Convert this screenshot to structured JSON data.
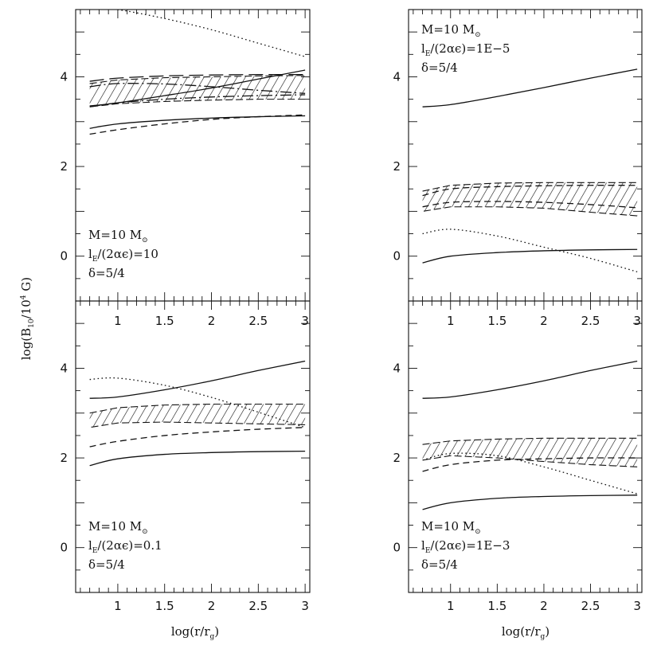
{
  "figure": {
    "ylabel": "log(B",
    "ylabel_sub": "10",
    "ylabel_rest": "/10",
    "ylabel_sup": "4",
    "ylabel_tail": " G)",
    "xlabel": "log(r/r",
    "xlabel_sub": "g",
    "xlabel_tail": ")"
  },
  "chart_data": [
    {
      "type": "line",
      "panel": "top-left",
      "xlim": [
        0.55,
        3.05
      ],
      "ylim": [
        -1.0,
        5.5
      ],
      "xticks": [
        "1",
        "1.5",
        "2",
        "2.5",
        "3"
      ],
      "yticks": [
        "0",
        "2",
        "4"
      ],
      "annotation": {
        "m_label": "M=10 M",
        "m_sub": "⊙",
        "l_label": "l",
        "l_sub": "E",
        "l_rest": "/(2αϵ)=10",
        "delta": "δ=5/4"
      },
      "series": [
        {
          "name": "dotted",
          "style": "dotted",
          "x": [
            0.7,
            1.0,
            1.5,
            2.0,
            2.5,
            3.0
          ],
          "y": [
            5.55,
            5.5,
            5.3,
            5.05,
            4.75,
            4.45
          ]
        },
        {
          "name": "long-dash",
          "style": "longdash",
          "x": [
            0.7,
            1.0,
            1.5,
            2.0,
            2.5,
            3.0
          ],
          "y": [
            3.9,
            3.97,
            4.02,
            4.04,
            4.05,
            4.05
          ]
        },
        {
          "name": "dash-dot",
          "style": "dashdot",
          "x": [
            0.7,
            1.0,
            1.5,
            2.0,
            2.5,
            3.0
          ],
          "y": [
            3.78,
            3.85,
            3.84,
            3.78,
            3.7,
            3.63
          ]
        },
        {
          "name": "dash-dot-2",
          "style": "dashdot",
          "x": [
            0.7,
            1.0,
            1.5,
            2.0,
            2.5,
            3.0
          ],
          "y": [
            3.33,
            3.42,
            3.5,
            3.55,
            3.58,
            3.6
          ]
        },
        {
          "name": "solid-upper",
          "style": "solid",
          "x": [
            0.7,
            1.0,
            1.5,
            2.0,
            2.5,
            3.0
          ],
          "y": [
            3.35,
            3.42,
            3.58,
            3.75,
            3.95,
            4.15
          ]
        },
        {
          "name": "solid-lower",
          "style": "solid",
          "x": [
            0.7,
            1.0,
            1.5,
            2.0,
            2.5,
            3.0
          ],
          "y": [
            2.85,
            2.95,
            3.03,
            3.08,
            3.11,
            3.13
          ]
        },
        {
          "name": "dashed",
          "style": "dashed",
          "x": [
            0.7,
            1.0,
            1.5,
            2.0,
            2.5,
            3.0
          ],
          "y": [
            2.72,
            2.82,
            2.95,
            3.05,
            3.11,
            3.15
          ]
        }
      ],
      "band": {
        "x": [
          0.7,
          1.0,
          1.5,
          2.0,
          2.5,
          3.0
        ],
        "upper": [
          3.85,
          3.93,
          3.98,
          4.0,
          4.02,
          4.03
        ],
        "lower": [
          3.33,
          3.4,
          3.45,
          3.48,
          3.5,
          3.5
        ]
      }
    },
    {
      "type": "line",
      "panel": "top-right",
      "xlim": [
        0.55,
        3.05
      ],
      "ylim": [
        -1.0,
        5.5
      ],
      "xticks": [
        "1",
        "1.5",
        "2",
        "2.5",
        "3"
      ],
      "yticks": [
        "0",
        "2",
        "4"
      ],
      "annotation": {
        "m_label": "M=10 M",
        "m_sub": "⊙",
        "l_label": "l",
        "l_sub": "E",
        "l_rest": "/(2αϵ)=1E−5",
        "delta": "δ=5/4"
      },
      "series": [
        {
          "name": "solid-upper",
          "style": "solid",
          "x": [
            0.7,
            1.0,
            1.5,
            2.0,
            2.5,
            3.0
          ],
          "y": [
            3.33,
            3.38,
            3.56,
            3.76,
            3.97,
            4.17
          ]
        },
        {
          "name": "dashed-1",
          "style": "dashed",
          "x": [
            0.7,
            1.0,
            1.5,
            2.0,
            2.5,
            3.0
          ],
          "y": [
            1.35,
            1.5,
            1.55,
            1.57,
            1.58,
            1.58
          ]
        },
        {
          "name": "dashed-2",
          "style": "dashed",
          "x": [
            0.7,
            1.0,
            1.5,
            2.0,
            2.5,
            3.0
          ],
          "y": [
            1.1,
            1.2,
            1.22,
            1.2,
            1.15,
            1.08
          ]
        },
        {
          "name": "dotted",
          "style": "dotted",
          "x": [
            0.7,
            1.0,
            1.5,
            2.0,
            2.5,
            3.0
          ],
          "y": [
            0.5,
            0.6,
            0.45,
            0.2,
            -0.05,
            -0.35
          ]
        },
        {
          "name": "solid-lower",
          "style": "solid",
          "x": [
            0.7,
            1.0,
            1.5,
            2.0,
            2.5,
            3.0
          ],
          "y": [
            -0.15,
            0.0,
            0.08,
            0.12,
            0.14,
            0.15
          ]
        }
      ],
      "band": {
        "x": [
          0.7,
          1.0,
          1.5,
          2.0,
          2.5,
          3.0
        ],
        "upper": [
          1.45,
          1.58,
          1.63,
          1.64,
          1.64,
          1.64
        ],
        "lower": [
          1.0,
          1.1,
          1.1,
          1.07,
          0.98,
          0.9
        ]
      }
    },
    {
      "type": "line",
      "panel": "bottom-left",
      "xlim": [
        0.55,
        3.05
      ],
      "ylim": [
        -1.0,
        5.5
      ],
      "xticks": [
        "1",
        "1.5",
        "2",
        "2.5",
        "3"
      ],
      "yticks": [
        "0",
        "2",
        "4"
      ],
      "annotation": {
        "m_label": "M=10 M",
        "m_sub": "⊙",
        "l_label": "l",
        "l_sub": "E",
        "l_rest": "/(2αϵ)=0.1",
        "delta": "δ=5/4"
      },
      "series": [
        {
          "name": "dotted",
          "style": "dotted",
          "x": [
            0.7,
            1.0,
            1.5,
            2.0,
            2.5,
            3.0
          ],
          "y": [
            3.75,
            3.78,
            3.62,
            3.35,
            3.02,
            2.68
          ]
        },
        {
          "name": "solid-upper",
          "style": "solid",
          "x": [
            0.7,
            1.0,
            1.5,
            2.0,
            2.5,
            3.0
          ],
          "y": [
            3.33,
            3.36,
            3.52,
            3.72,
            3.95,
            4.16
          ]
        },
        {
          "name": "dashed",
          "style": "dashed",
          "x": [
            0.7,
            1.0,
            1.5,
            2.0,
            2.5,
            3.0
          ],
          "y": [
            2.25,
            2.37,
            2.5,
            2.58,
            2.64,
            2.68
          ]
        },
        {
          "name": "solid-lower",
          "style": "solid",
          "x": [
            0.7,
            1.0,
            1.5,
            2.0,
            2.5,
            3.0
          ],
          "y": [
            1.83,
            1.98,
            2.08,
            2.12,
            2.14,
            2.15
          ]
        }
      ],
      "band": {
        "x": [
          0.7,
          1.0,
          1.5,
          2.0,
          2.5,
          3.0
        ],
        "upper": [
          3.0,
          3.12,
          3.18,
          3.2,
          3.2,
          3.2
        ],
        "lower": [
          2.68,
          2.78,
          2.8,
          2.78,
          2.76,
          2.74
        ]
      }
    },
    {
      "type": "line",
      "panel": "bottom-right",
      "xlim": [
        0.55,
        3.05
      ],
      "ylim": [
        -1.0,
        5.5
      ],
      "xticks": [
        "1",
        "1.5",
        "2",
        "2.5",
        "3"
      ],
      "yticks": [
        "0",
        "2",
        "4"
      ],
      "annotation": {
        "m_label": "M=10 M",
        "m_sub": "⊙",
        "l_label": "l",
        "l_sub": "E",
        "l_rest": "/(2αϵ)=1E−3",
        "delta": "δ=5/4"
      },
      "series": [
        {
          "name": "solid-upper",
          "style": "solid",
          "x": [
            0.7,
            1.0,
            1.5,
            2.0,
            2.5,
            3.0
          ],
          "y": [
            3.33,
            3.36,
            3.52,
            3.72,
            3.95,
            4.16
          ]
        },
        {
          "name": "dotted",
          "style": "dotted",
          "x": [
            0.7,
            1.0,
            1.5,
            2.0,
            2.5,
            3.0
          ],
          "y": [
            1.95,
            2.1,
            2.05,
            1.8,
            1.5,
            1.2
          ]
        },
        {
          "name": "dashed",
          "style": "dashed",
          "x": [
            0.7,
            1.0,
            1.5,
            2.0,
            2.5,
            3.0
          ],
          "y": [
            1.7,
            1.85,
            1.95,
            1.98,
            2.0,
            2.0
          ]
        },
        {
          "name": "solid-lower",
          "style": "solid",
          "x": [
            0.7,
            1.0,
            1.5,
            2.0,
            2.5,
            3.0
          ],
          "y": [
            0.85,
            1.0,
            1.1,
            1.14,
            1.16,
            1.17
          ]
        }
      ],
      "band": {
        "x": [
          0.7,
          1.0,
          1.5,
          2.0,
          2.5,
          3.0
        ],
        "upper": [
          2.3,
          2.38,
          2.42,
          2.44,
          2.44,
          2.44
        ],
        "lower": [
          1.95,
          2.05,
          2.0,
          1.92,
          1.85,
          1.8
        ]
      }
    }
  ]
}
